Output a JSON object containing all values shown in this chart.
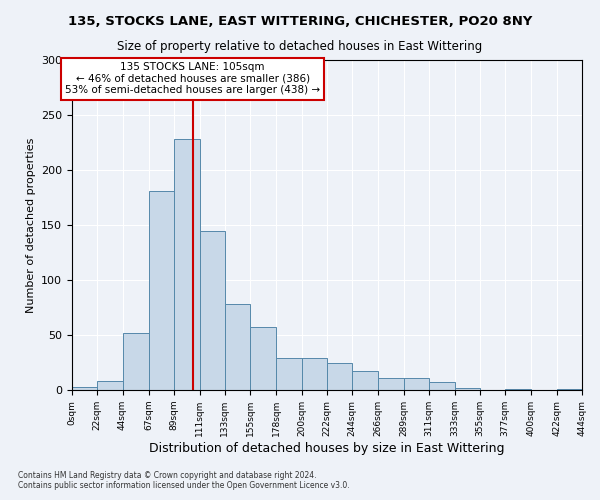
{
  "title1": "135, STOCKS LANE, EAST WITTERING, CHICHESTER, PO20 8NY",
  "title2": "Size of property relative to detached houses in East Wittering",
  "xlabel": "Distribution of detached houses by size in East Wittering",
  "ylabel": "Number of detached properties",
  "footnote": "Contains HM Land Registry data © Crown copyright and database right 2024.\nContains public sector information licensed under the Open Government Licence v3.0.",
  "bar_color": "#c8d8e8",
  "bar_edge_color": "#5588aa",
  "bin_edges": [
    0,
    22,
    44,
    67,
    89,
    111,
    133,
    155,
    178,
    200,
    222,
    244,
    266,
    289,
    311,
    333,
    355,
    377,
    400,
    422,
    444
  ],
  "bar_heights": [
    3,
    8,
    52,
    181,
    228,
    145,
    78,
    57,
    29,
    29,
    25,
    17,
    11,
    11,
    7,
    2,
    0,
    1,
    0,
    1
  ],
  "tick_labels": [
    "0sqm",
    "22sqm",
    "44sqm",
    "67sqm",
    "89sqm",
    "111sqm",
    "133sqm",
    "155sqm",
    "178sqm",
    "200sqm",
    "222sqm",
    "244sqm",
    "266sqm",
    "289sqm",
    "311sqm",
    "333sqm",
    "355sqm",
    "377sqm",
    "400sqm",
    "422sqm",
    "444sqm"
  ],
  "property_size": 105,
  "property_label": "135 STOCKS LANE: 105sqm",
  "annotation_line1": "← 46% of detached houses are smaller (386)",
  "annotation_line2": "53% of semi-detached houses are larger (438) →",
  "vline_color": "#cc0000",
  "annotation_box_color": "#ffffff",
  "annotation_box_edge": "#cc0000",
  "ylim": [
    0,
    300
  ],
  "yticks": [
    0,
    50,
    100,
    150,
    200,
    250,
    300
  ],
  "bg_color": "#eef2f8",
  "plot_bg_color": "#eef2f8"
}
